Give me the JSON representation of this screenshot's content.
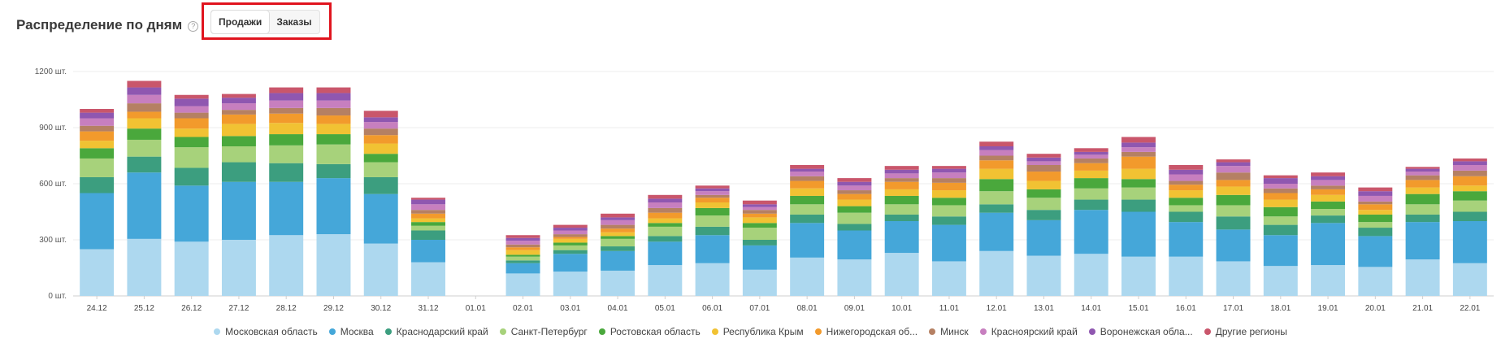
{
  "header": {
    "title": "Распределение по дням",
    "help_icon": "?"
  },
  "toggle": {
    "tabs": [
      {
        "label": "Продажи",
        "active": true
      },
      {
        "label": "Заказы",
        "active": false
      }
    ]
  },
  "chart_data": {
    "type": "bar",
    "stacked": true,
    "ylim": [
      0,
      1200
    ],
    "yticks": [
      "0 шт.",
      "300 шт.",
      "600 шт.",
      "900 шт.",
      "1200 шт."
    ],
    "grid": true,
    "legend_position": "bottom",
    "categories": [
      "24.12",
      "25.12",
      "26.12",
      "27.12",
      "28.12",
      "29.12",
      "30.12",
      "31.12",
      "01.01",
      "02.01",
      "03.01",
      "04.01",
      "05.01",
      "06.01",
      "07.01",
      "08.01",
      "09.01",
      "10.01",
      "11.01",
      "12.01",
      "13.01",
      "14.01",
      "15.01",
      "16.01",
      "17.01",
      "18.01",
      "19.01",
      "20.01",
      "21.01",
      "22.01"
    ],
    "series": [
      {
        "name": "Московская область",
        "color": "#add8ef",
        "values": [
          250,
          305,
          290,
          300,
          325,
          330,
          280,
          180,
          0,
          120,
          130,
          135,
          165,
          175,
          140,
          205,
          195,
          230,
          185,
          240,
          215,
          225,
          210,
          210,
          185,
          160,
          165,
          155,
          195,
          175
        ]
      },
      {
        "name": "Москва",
        "color": "#45a7d9",
        "values": [
          300,
          355,
          300,
          310,
          285,
          300,
          265,
          120,
          0,
          55,
          95,
          105,
          125,
          150,
          130,
          185,
          155,
          170,
          195,
          205,
          190,
          235,
          240,
          185,
          170,
          165,
          225,
          165,
          200,
          225
        ]
      },
      {
        "name": "Краснодарский край",
        "color": "#3c9e7f",
        "values": [
          85,
          85,
          95,
          105,
          100,
          75,
          90,
          50,
          0,
          15,
          20,
          25,
          30,
          45,
          30,
          45,
          35,
          35,
          45,
          45,
          55,
          55,
          65,
          55,
          70,
          55,
          40,
          45,
          40,
          50
        ]
      },
      {
        "name": "Санкт-Петербург",
        "color": "#a7d27b",
        "values": [
          100,
          90,
          110,
          85,
          95,
          105,
          80,
          25,
          0,
          20,
          25,
          40,
          50,
          60,
          65,
          55,
          60,
          55,
          60,
          70,
          65,
          60,
          65,
          35,
          60,
          45,
          35,
          30,
          55,
          60
        ]
      },
      {
        "name": "Ростовская область",
        "color": "#4aa83c",
        "values": [
          55,
          60,
          55,
          55,
          60,
          55,
          45,
          20,
          0,
          10,
          15,
          15,
          20,
          40,
          25,
          45,
          35,
          45,
          40,
          65,
          45,
          55,
          45,
          40,
          55,
          50,
          40,
          40,
          55,
          50
        ]
      },
      {
        "name": "Республика Крым",
        "color": "#f1c233",
        "values": [
          40,
          55,
          45,
          65,
          60,
          55,
          55,
          20,
          0,
          25,
          20,
          20,
          25,
          30,
          30,
          40,
          35,
          35,
          40,
          55,
          45,
          40,
          55,
          40,
          45,
          40,
          35,
          25,
          35,
          30
        ]
      },
      {
        "name": "Нижегородская об...",
        "color": "#f29a2c",
        "values": [
          50,
          35,
          55,
          50,
          50,
          45,
          45,
          25,
          0,
          15,
          10,
          20,
          30,
          25,
          20,
          40,
          30,
          40,
          40,
          45,
          50,
          40,
          65,
          30,
          35,
          35,
          30,
          30,
          40,
          50
        ]
      },
      {
        "name": "Минск",
        "color": "#b58063",
        "values": [
          30,
          45,
          30,
          25,
          30,
          40,
          35,
          20,
          0,
          15,
          15,
          20,
          25,
          15,
          20,
          25,
          20,
          20,
          25,
          25,
          35,
          25,
          25,
          20,
          40,
          25,
          20,
          15,
          25,
          30
        ]
      },
      {
        "name": "Красноярский край",
        "color": "#c77fbf",
        "values": [
          40,
          45,
          35,
          35,
          40,
          40,
          35,
          30,
          0,
          20,
          20,
          25,
          30,
          20,
          15,
          25,
          25,
          25,
          30,
          30,
          20,
          20,
          25,
          35,
          35,
          25,
          30,
          30,
          20,
          30
        ]
      },
      {
        "name": "Воронежская обла...",
        "color": "#8f57b0",
        "values": [
          30,
          40,
          40,
          30,
          40,
          40,
          25,
          25,
          0,
          15,
          15,
          15,
          20,
          15,
          15,
          15,
          20,
          20,
          20,
          20,
          20,
          15,
          25,
          25,
          20,
          30,
          20,
          25,
          15,
          20
        ]
      },
      {
        "name": "Другие регионы",
        "color": "#c9566b",
        "values": [
          20,
          35,
          20,
          20,
          30,
          30,
          35,
          10,
          0,
          15,
          15,
          20,
          20,
          15,
          20,
          20,
          20,
          20,
          15,
          25,
          20,
          20,
          30,
          25,
          15,
          15,
          20,
          20,
          10,
          15
        ]
      }
    ]
  }
}
